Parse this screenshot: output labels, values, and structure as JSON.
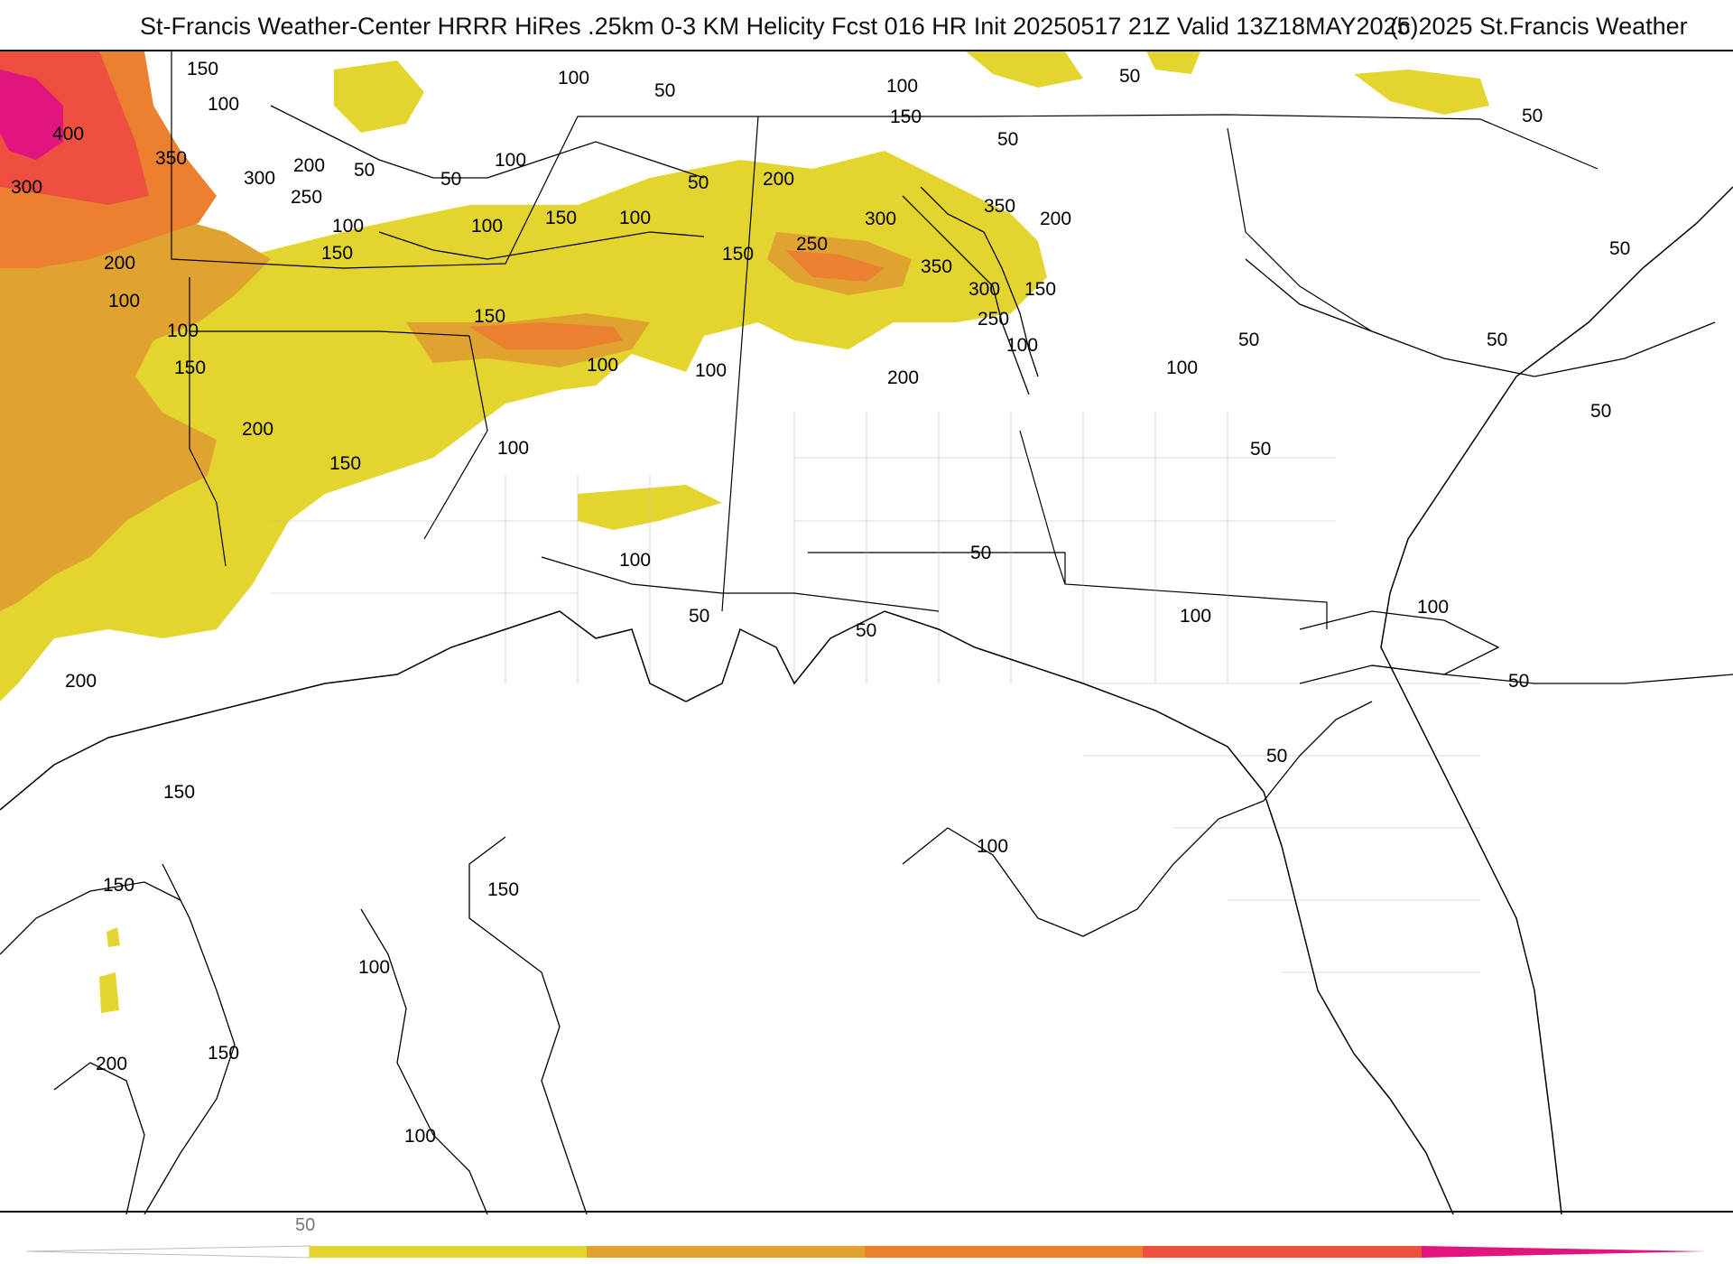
{
  "header": {
    "title": "St-Francis Weather-Center HRRR HiRes .25km 0-3 KM Helicity Fcst 016 HR Init 20250517 21Z  Valid 13Z18MAY2025",
    "copyright": "(c)2025 St.Francis Weather"
  },
  "map": {
    "fill_colors": {
      "level_1": "#e3d52e",
      "level_2": "#e0a330",
      "level_3": "#ea8030",
      "level_4": "#ef4f3f",
      "level_5": "#e0157e"
    },
    "contour_labels": {
      "l1": "150",
      "l2": "100",
      "l3": "400",
      "l4": "350",
      "l5": "300",
      "l6": "300",
      "l7": "200",
      "l8": "50",
      "l9": "250",
      "l10": "100",
      "l11": "150",
      "l12": "100",
      "l13": "200",
      "l14": "100",
      "l15": "150",
      "l16": "200",
      "l17": "150",
      "l18": "100",
      "l19": "100",
      "l20": "50",
      "l21": "100",
      "l22": "50",
      "l23": "150",
      "l24": "100",
      "l25": "100",
      "l26": "100",
      "l27": "150",
      "l28": "150",
      "l29": "100",
      "l30": "50",
      "l31": "100",
      "l32": "150",
      "l33": "200",
      "l34": "50",
      "l35": "300",
      "l36": "250",
      "l37": "350",
      "l38": "350",
      "l39": "300",
      "l40": "200",
      "l41": "150",
      "l42": "250",
      "l43": "100",
      "l44": "200",
      "l45": "50",
      "l46": "100",
      "l47": "50",
      "l48": "50",
      "l49": "50",
      "l50": "50",
      "l51": "50",
      "l52": "50",
      "l53": "100",
      "l54": "50",
      "l55": "100",
      "l56": "50",
      "l57": "50",
      "l58": "100",
      "l59": "200",
      "l60": "150",
      "l61": "150",
      "l62": "50",
      "l63": "50",
      "l64": "150",
      "l65": "100",
      "l66": "150",
      "l67": "200",
      "l68": "100",
      "l69": "100"
    }
  },
  "legend": {
    "first_label": "50",
    "colors": [
      "#e3d52e",
      "#e0a330",
      "#ea8030",
      "#ef4f3f",
      "#e0157e"
    ]
  }
}
